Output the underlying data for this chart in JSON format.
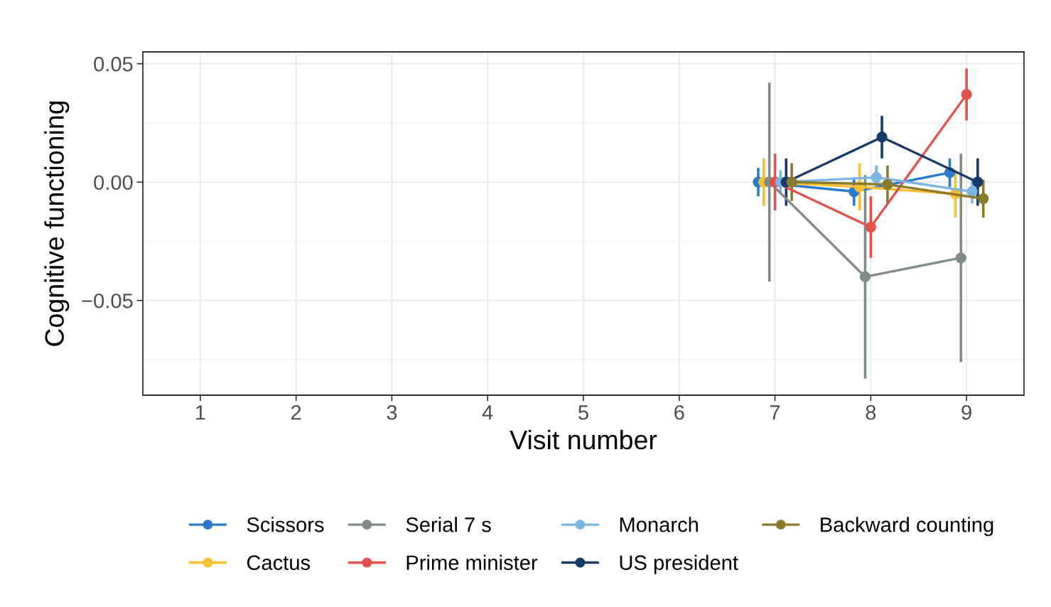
{
  "chart_data": {
    "type": "line",
    "xlabel": "Visit number",
    "ylabel": "Cognitive functioning",
    "categories": [
      "1",
      "2",
      "3",
      "4",
      "5",
      "6",
      "7",
      "8",
      "9"
    ],
    "series": [
      {
        "name": "Scissors",
        "color": "#2a7bcb",
        "values": [
          null,
          null,
          null,
          null,
          null,
          null,
          0.0,
          -0.004,
          0.004
        ],
        "errors": [
          null,
          null,
          null,
          null,
          null,
          null,
          0.006,
          0.006,
          0.006
        ]
      },
      {
        "name": "Cactus",
        "color": "#f8bf2f",
        "values": [
          null,
          null,
          null,
          null,
          null,
          null,
          0.0,
          -0.002,
          -0.005
        ],
        "errors": [
          null,
          null,
          null,
          null,
          null,
          null,
          0.01,
          0.01,
          0.01
        ]
      },
      {
        "name": "Serial 7 s",
        "color": "#808c88",
        "values": [
          null,
          null,
          null,
          null,
          null,
          null,
          0.0,
          -0.04,
          -0.032
        ],
        "errors": [
          null,
          null,
          null,
          null,
          null,
          null,
          0.042,
          0.043,
          0.044
        ]
      },
      {
        "name": "Prime minister",
        "color": "#e3524a",
        "values": [
          null,
          null,
          null,
          null,
          null,
          null,
          0.0,
          -0.019,
          0.037
        ],
        "errors": [
          null,
          null,
          null,
          null,
          null,
          null,
          0.012,
          0.013,
          0.011
        ]
      },
      {
        "name": "Monarch",
        "color": "#7ab5e3",
        "values": [
          null,
          null,
          null,
          null,
          null,
          null,
          0.0,
          0.002,
          -0.004
        ],
        "errors": [
          null,
          null,
          null,
          null,
          null,
          null,
          0.005,
          0.005,
          0.005
        ]
      },
      {
        "name": "US president",
        "color": "#163b66",
        "values": [
          null,
          null,
          null,
          null,
          null,
          null,
          0.0,
          0.019,
          0.0
        ],
        "errors": [
          null,
          null,
          null,
          null,
          null,
          null,
          0.01,
          0.009,
          0.01
        ]
      },
      {
        "name": "Backward counting",
        "color": "#8b7a2b",
        "values": [
          null,
          null,
          null,
          null,
          null,
          null,
          0.0,
          -0.001,
          -0.007
        ],
        "errors": [
          null,
          null,
          null,
          null,
          null,
          null,
          0.008,
          0.008,
          0.008
        ]
      }
    ],
    "ylim": [
      -0.09,
      0.055
    ],
    "yticks": [
      {
        "value": -0.05,
        "label": "−0.05"
      },
      {
        "value": 0.0,
        "label": "0.00"
      },
      {
        "value": 0.05,
        "label": "0.05"
      }
    ],
    "grid": true,
    "legend": "bottom",
    "marker": "circle",
    "line_style": "solid"
  }
}
